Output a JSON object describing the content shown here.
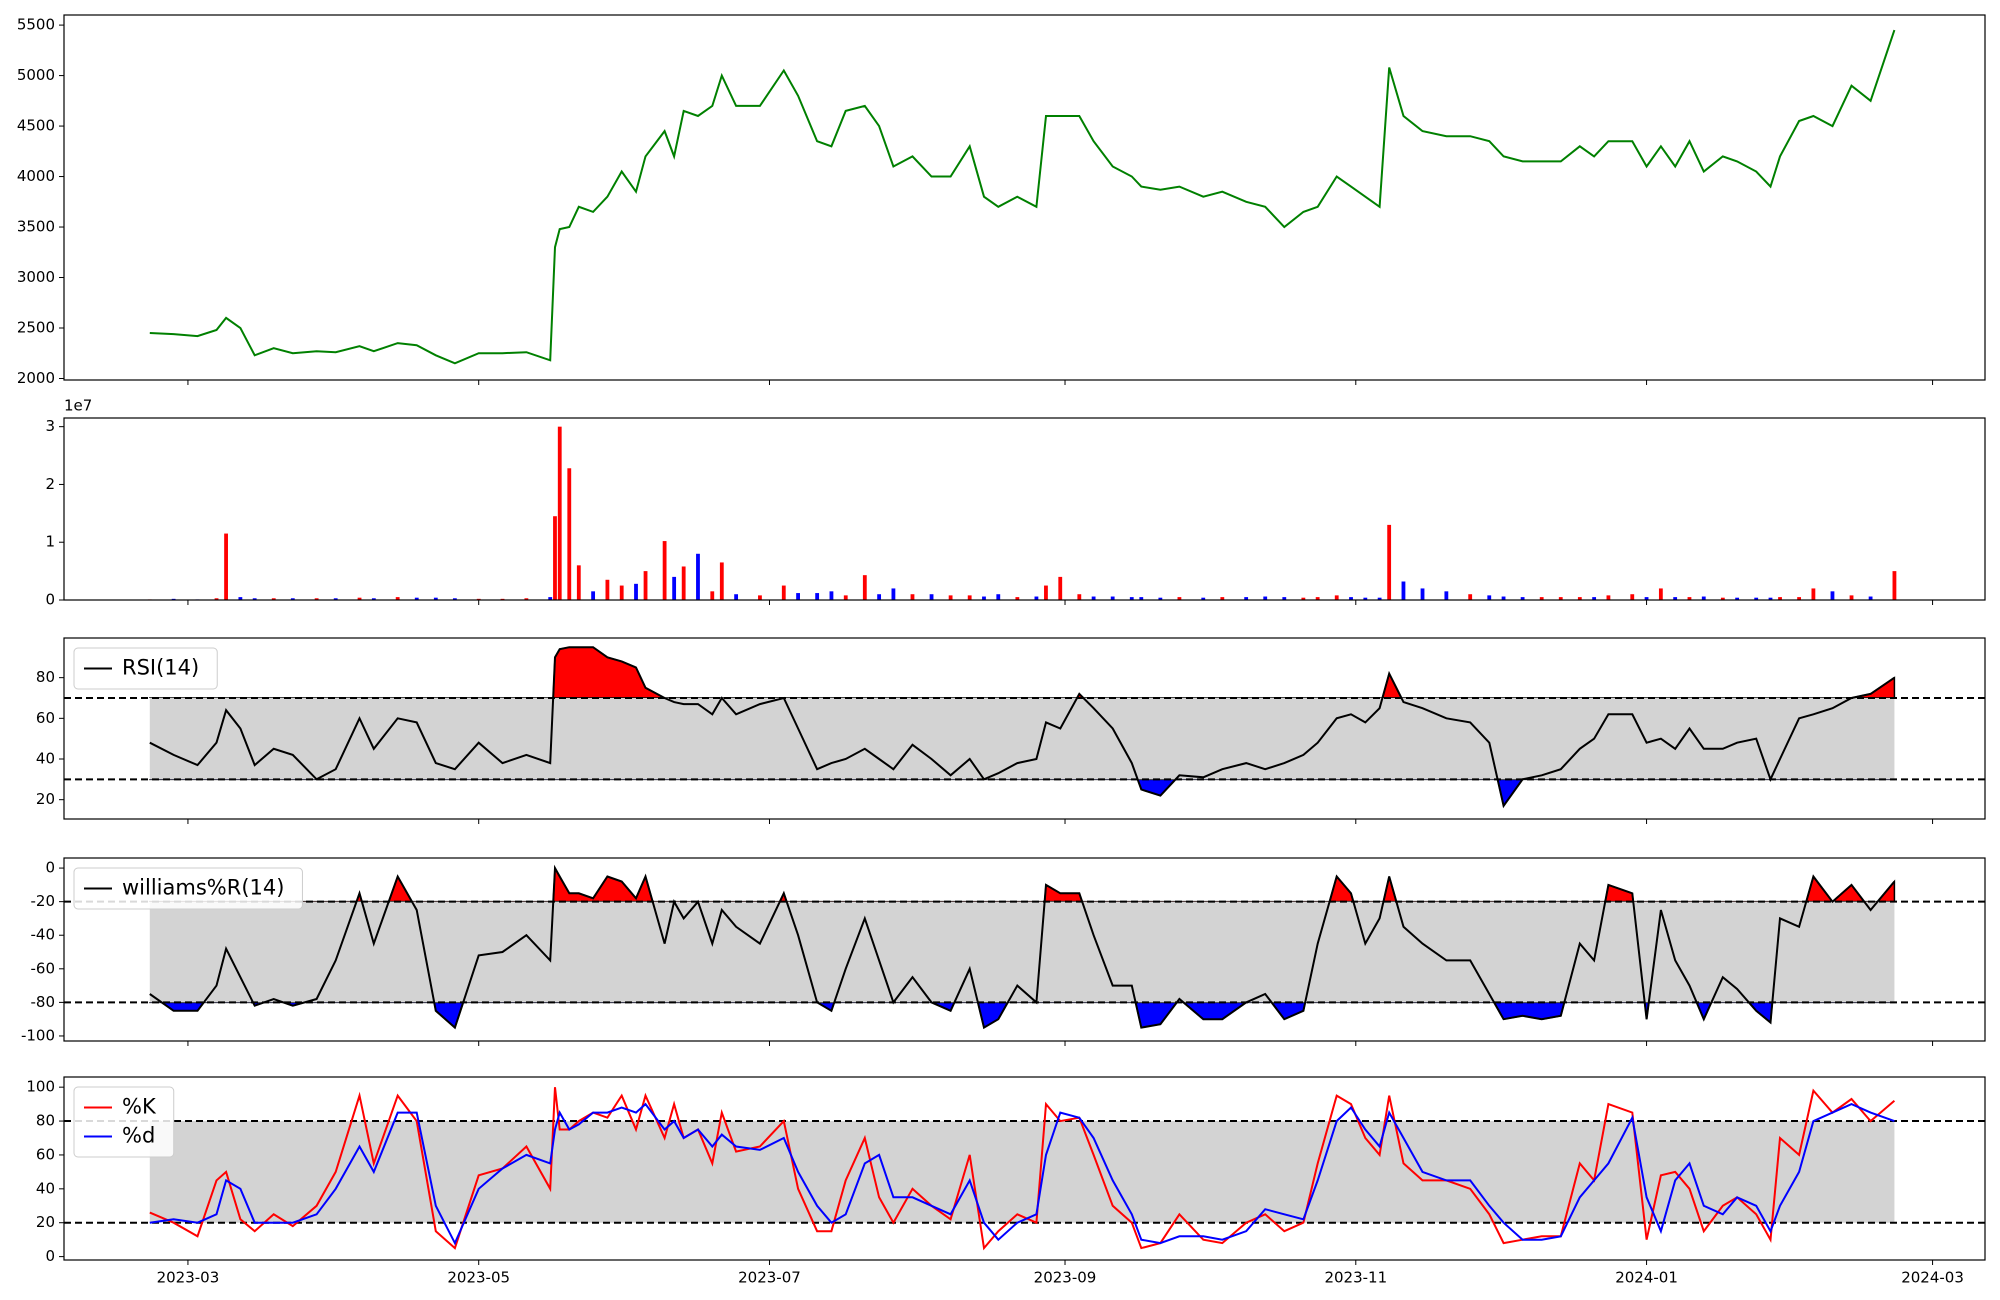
{
  "chart_data": {
    "type": "multi",
    "x": [
      19409,
      19414,
      19419,
      19423,
      19425,
      19428,
      19431,
      19435,
      19439,
      19444,
      19448,
      19453,
      19456,
      19461,
      19465,
      19469,
      19473,
      19478,
      19483,
      19488,
      19493,
      19494,
      19495,
      19497,
      19499,
      19502,
      19505,
      19508,
      19511,
      19513,
      19517,
      19519,
      19521,
      19524,
      19527,
      19529,
      19532,
      19537,
      19542,
      19545,
      19549,
      19552,
      19555,
      19559,
      19562,
      19565,
      19569,
      19573,
      19577,
      19581,
      19584,
      19587,
      19591,
      19595,
      19597,
      19600,
      19604,
      19607,
      19611,
      19615,
      19617,
      19621,
      19625,
      19630,
      19634,
      19639,
      19643,
      19647,
      19651,
      19654,
      19658,
      19661,
      19664,
      19667,
      19669,
      19672,
      19676,
      19681,
      19686,
      19690,
      19693,
      19697,
      19701,
      19705,
      19709,
      19712,
      19715,
      19720,
      19723,
      19726,
      19729,
      19732,
      19735,
      19739,
      19742,
      19746,
      19749,
      19751,
      19755,
      19758,
      19762,
      19766,
      19770,
      19775
    ],
    "xlim": [
      19391,
      19794
    ],
    "xticks": [
      {
        "value": 19417,
        "label": "2023-03"
      },
      {
        "value": 19478,
        "label": "2023-05"
      },
      {
        "value": 19539,
        "label": "2023-07"
      },
      {
        "value": 19601,
        "label": "2023-09"
      },
      {
        "value": 19662,
        "label": "2023-11"
      },
      {
        "value": 19723,
        "label": "2024-01"
      },
      {
        "value": 19783,
        "label": "2024-03"
      }
    ],
    "panels": [
      {
        "type": "line",
        "color": "green",
        "ylim": [
          1985,
          5600
        ],
        "yticks": [
          2000,
          2500,
          3000,
          3500,
          4000,
          4500,
          5000,
          5500
        ],
        "values": [
          2450,
          2440,
          2420,
          2480,
          2600,
          2500,
          2230,
          2300,
          2250,
          2270,
          2260,
          2320,
          2270,
          2350,
          2330,
          2230,
          2150,
          2250,
          2250,
          2260,
          2180,
          3300,
          3480,
          3500,
          3700,
          3650,
          3800,
          4050,
          3850,
          4200,
          4450,
          4200,
          4650,
          4600,
          4700,
          5000,
          4700,
          4700,
          5050,
          4800,
          4350,
          4300,
          4650,
          4700,
          4500,
          4100,
          4200,
          4000,
          4000,
          4300,
          3800,
          3700,
          3800,
          3700,
          4600,
          4600,
          4600,
          4350,
          4100,
          4000,
          3900,
          3870,
          3900,
          3800,
          3850,
          3750,
          3700,
          3500,
          3650,
          3700,
          4000,
          3900,
          3800,
          3700,
          5080,
          4600,
          4450,
          4400,
          4400,
          4350,
          4200,
          4150,
          4150,
          4150,
          4300,
          4200,
          4350,
          4350,
          4100,
          4300,
          4100,
          4350,
          4050,
          4200,
          4150,
          4050,
          3900,
          4200,
          4550,
          4600,
          4500,
          4900,
          4750,
          5450
        ]
      },
      {
        "type": "bar",
        "up_color": "red",
        "down_color": "blue",
        "offset_label": "1e7",
        "ylim": [
          0,
          3.15
        ],
        "yticks": [
          0,
          1,
          2,
          3
        ],
        "values": [
          0.01,
          0.02,
          0.01,
          0.03,
          1.15,
          0.05,
          0.03,
          0.03,
          0.03,
          0.03,
          0.03,
          0.04,
          0.03,
          0.05,
          0.04,
          0.04,
          0.03,
          0.02,
          0.02,
          0.03,
          0.05,
          1.45,
          3.0,
          2.28,
          0.6,
          0.15,
          0.35,
          0.25,
          0.28,
          0.5,
          1.02,
          0.4,
          0.58,
          0.8,
          0.15,
          0.65,
          0.1,
          0.08,
          0.25,
          0.12,
          0.12,
          0.15,
          0.08,
          0.43,
          0.1,
          0.2,
          0.1,
          0.1,
          0.08,
          0.08,
          0.06,
          0.1,
          0.05,
          0.06,
          0.25,
          0.4,
          0.1,
          0.06,
          0.06,
          0.05,
          0.05,
          0.04,
          0.05,
          0.04,
          0.05,
          0.05,
          0.06,
          0.05,
          0.04,
          0.05,
          0.08,
          0.05,
          0.04,
          0.04,
          1.3,
          0.32,
          0.2,
          0.15,
          0.1,
          0.08,
          0.06,
          0.05,
          0.05,
          0.05,
          0.05,
          0.05,
          0.08,
          0.1,
          0.05,
          0.2,
          0.05,
          0.05,
          0.06,
          0.04,
          0.04,
          0.04,
          0.04,
          0.05,
          0.05,
          0.2,
          0.15,
          0.08,
          0.06,
          0.5
        ]
      },
      {
        "type": "oscillator",
        "upper": 70,
        "lower": 30,
        "band_color": "lightgray",
        "upper_fill": "red",
        "lower_fill": "blue",
        "legend": "upper left",
        "ylim": [
          10.5,
          99.5
        ],
        "yticks": [
          20,
          40,
          60,
          80
        ],
        "series": [
          {
            "name": "RSI(14)",
            "color": "black",
            "values": [
              48,
              42,
              37,
              48,
              64,
              55,
              37,
              45,
              42,
              30,
              35,
              60,
              45,
              60,
              58,
              38,
              35,
              48,
              38,
              42,
              38,
              90,
              94,
              95,
              95,
              95,
              90,
              88,
              85,
              75,
              70,
              68,
              67,
              67,
              62,
              70,
              62,
              67,
              70,
              55,
              35,
              38,
              40,
              45,
              40,
              35,
              47,
              40,
              32,
              40,
              30,
              33,
              38,
              40,
              58,
              55,
              72,
              65,
              55,
              38,
              25,
              22,
              32,
              31,
              35,
              38,
              35,
              38,
              42,
              48,
              60,
              62,
              58,
              65,
              82,
              68,
              65,
              60,
              58,
              48,
              17,
              30,
              32,
              35,
              45,
              50,
              62,
              62,
              48,
              50,
              45,
              55,
              45,
              45,
              48,
              50,
              30,
              40,
              60,
              62,
              65,
              70,
              72,
              80
            ]
          }
        ]
      },
      {
        "type": "oscillator",
        "upper": -20,
        "lower": -80,
        "band_color": "lightgray",
        "upper_fill": "red",
        "lower_fill": "blue",
        "legend": "upper left",
        "ylim": [
          -103,
          6
        ],
        "yticks": [
          0,
          -20,
          -40,
          -60,
          -80,
          -100
        ],
        "series": [
          {
            "name": "williams%R(14)",
            "color": "black",
            "values": [
              -75,
              -85,
              -85,
              -70,
              -48,
              -65,
              -82,
              -78,
              -82,
              -78,
              -55,
              -15,
              -45,
              -5,
              -25,
              -85,
              -95,
              -52,
              -50,
              -40,
              -55,
              0,
              -5,
              -15,
              -15,
              -18,
              -5,
              -8,
              -18,
              -5,
              -45,
              -20,
              -30,
              -20,
              -45,
              -25,
              -35,
              -45,
              -15,
              -40,
              -80,
              -85,
              -60,
              -30,
              -55,
              -80,
              -65,
              -80,
              -85,
              -60,
              -95,
              -90,
              -70,
              -80,
              -10,
              -15,
              -15,
              -40,
              -70,
              -70,
              -95,
              -93,
              -78,
              -90,
              -90,
              -80,
              -75,
              -90,
              -85,
              -45,
              -5,
              -15,
              -45,
              -30,
              -5,
              -35,
              -45,
              -55,
              -55,
              -75,
              -90,
              -88,
              -90,
              -88,
              -45,
              -55,
              -10,
              -15,
              -90,
              -25,
              -55,
              -70,
              -90,
              -65,
              -72,
              -85,
              -92,
              -30,
              -35,
              -5,
              -20,
              -10,
              -25,
              -8
            ]
          }
        ]
      },
      {
        "type": "oscillator",
        "upper": 80,
        "lower": 20,
        "band_color": "lightgray",
        "legend": "upper left",
        "ylim": [
          -2,
          106
        ],
        "yticks": [
          0,
          20,
          40,
          60,
          80,
          100
        ],
        "series": [
          {
            "name": "%K",
            "color": "red",
            "values": [
              26,
              20,
              12,
              45,
              50,
              22,
              15,
              25,
              18,
              30,
              50,
              95,
              55,
              95,
              80,
              15,
              5,
              48,
              52,
              65,
              40,
              100,
              75,
              75,
              80,
              85,
              82,
              95,
              75,
              95,
              70,
              90,
              70,
              75,
              55,
              85,
              62,
              65,
              80,
              40,
              15,
              15,
              45,
              70,
              35,
              20,
              40,
              30,
              22,
              60,
              5,
              15,
              25,
              20,
              90,
              80,
              82,
              60,
              30,
              20,
              5,
              8,
              25,
              10,
              8,
              20,
              25,
              15,
              20,
              55,
              95,
              90,
              70,
              60,
              95,
              55,
              45,
              45,
              40,
              25,
              8,
              10,
              12,
              12,
              55,
              45,
              90,
              85,
              10,
              48,
              50,
              40,
              15,
              30,
              35,
              25,
              10,
              70,
              60,
              98,
              85,
              93,
              80,
              92
            ]
          },
          {
            "name": "%d",
            "color": "blue",
            "values": [
              20,
              22,
              20,
              25,
              45,
              40,
              20,
              20,
              20,
              25,
              40,
              65,
              50,
              85,
              85,
              30,
              8,
              40,
              52,
              60,
              55,
              75,
              85,
              75,
              78,
              85,
              85,
              88,
              85,
              90,
              75,
              80,
              70,
              75,
              65,
              72,
              65,
              63,
              70,
              50,
              30,
              20,
              25,
              55,
              60,
              35,
              35,
              30,
              25,
              45,
              20,
              10,
              20,
              25,
              60,
              85,
              82,
              70,
              45,
              25,
              10,
              8,
              12,
              12,
              10,
              15,
              28,
              25,
              22,
              45,
              80,
              88,
              75,
              65,
              85,
              70,
              50,
              45,
              45,
              30,
              20,
              10,
              10,
              12,
              35,
              45,
              55,
              82,
              35,
              15,
              45,
              55,
              30,
              25,
              35,
              30,
              15,
              30,
              50,
              80,
              85,
              90,
              85,
              80
            ]
          }
        ]
      }
    ]
  }
}
